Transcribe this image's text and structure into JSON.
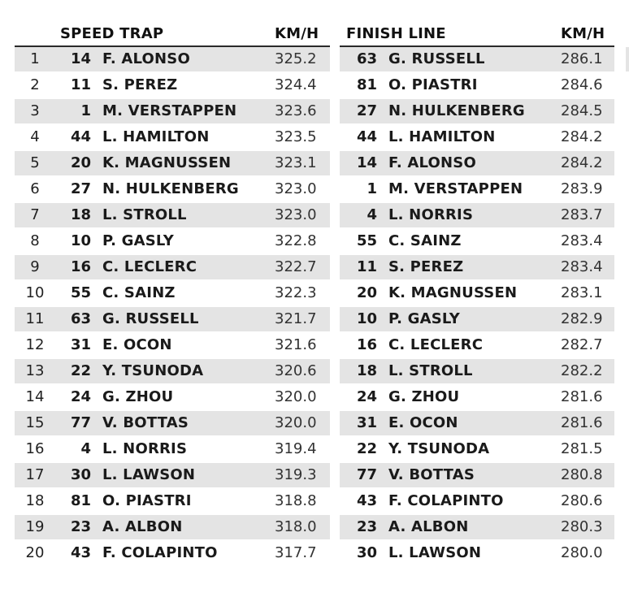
{
  "speed_trap": {
    "header": "SPEED TRAP",
    "unit": "KM/H",
    "rows": [
      {
        "pos": "1",
        "num": "14",
        "name": "F. ALONSO",
        "speed": "325.2"
      },
      {
        "pos": "2",
        "num": "11",
        "name": "S. PEREZ",
        "speed": "324.4"
      },
      {
        "pos": "3",
        "num": "1",
        "name": "M. VERSTAPPEN",
        "speed": "323.6"
      },
      {
        "pos": "4",
        "num": "44",
        "name": "L. HAMILTON",
        "speed": "323.5"
      },
      {
        "pos": "5",
        "num": "20",
        "name": "K. MAGNUSSEN",
        "speed": "323.1"
      },
      {
        "pos": "6",
        "num": "27",
        "name": "N. HULKENBERG",
        "speed": "323.0"
      },
      {
        "pos": "7",
        "num": "18",
        "name": "L. STROLL",
        "speed": "323.0"
      },
      {
        "pos": "8",
        "num": "10",
        "name": "P. GASLY",
        "speed": "322.8"
      },
      {
        "pos": "9",
        "num": "16",
        "name": "C. LECLERC",
        "speed": "322.7"
      },
      {
        "pos": "10",
        "num": "55",
        "name": "C. SAINZ",
        "speed": "322.3"
      },
      {
        "pos": "11",
        "num": "63",
        "name": "G. RUSSELL",
        "speed": "321.7"
      },
      {
        "pos": "12",
        "num": "31",
        "name": "E. OCON",
        "speed": "321.6"
      },
      {
        "pos": "13",
        "num": "22",
        "name": "Y. TSUNODA",
        "speed": "320.6"
      },
      {
        "pos": "14",
        "num": "24",
        "name": "G. ZHOU",
        "speed": "320.0"
      },
      {
        "pos": "15",
        "num": "77",
        "name": "V. BOTTAS",
        "speed": "320.0"
      },
      {
        "pos": "16",
        "num": "4",
        "name": "L. NORRIS",
        "speed": "319.4"
      },
      {
        "pos": "17",
        "num": "30",
        "name": "L. LAWSON",
        "speed": "319.3"
      },
      {
        "pos": "18",
        "num": "81",
        "name": "O. PIASTRI",
        "speed": "318.8"
      },
      {
        "pos": "19",
        "num": "23",
        "name": "A. ALBON",
        "speed": "318.0"
      },
      {
        "pos": "20",
        "num": "43",
        "name": "F. COLAPINTO",
        "speed": "317.7"
      }
    ]
  },
  "finish_line": {
    "header": "FINISH LINE",
    "unit": "KM/H",
    "rows": [
      {
        "num": "63",
        "name": "G. RUSSELL",
        "speed": "286.1"
      },
      {
        "num": "81",
        "name": "O. PIASTRI",
        "speed": "284.6"
      },
      {
        "num": "27",
        "name": "N. HULKENBERG",
        "speed": "284.5"
      },
      {
        "num": "44",
        "name": "L. HAMILTON",
        "speed": "284.2"
      },
      {
        "num": "14",
        "name": "F. ALONSO",
        "speed": "284.2"
      },
      {
        "num": "1",
        "name": "M. VERSTAPPEN",
        "speed": "283.9"
      },
      {
        "num": "4",
        "name": "L. NORRIS",
        "speed": "283.7"
      },
      {
        "num": "55",
        "name": "C. SAINZ",
        "speed": "283.4"
      },
      {
        "num": "11",
        "name": "S. PEREZ",
        "speed": "283.4"
      },
      {
        "num": "20",
        "name": "K. MAGNUSSEN",
        "speed": "283.1"
      },
      {
        "num": "10",
        "name": "P. GASLY",
        "speed": "282.9"
      },
      {
        "num": "16",
        "name": "C. LECLERC",
        "speed": "282.7"
      },
      {
        "num": "18",
        "name": "L. STROLL",
        "speed": "282.2"
      },
      {
        "num": "24",
        "name": "G. ZHOU",
        "speed": "281.6"
      },
      {
        "num": "31",
        "name": "E. OCON",
        "speed": "281.6"
      },
      {
        "num": "22",
        "name": "Y. TSUNODA",
        "speed": "281.5"
      },
      {
        "num": "77",
        "name": "V. BOTTAS",
        "speed": "280.8"
      },
      {
        "num": "43",
        "name": "F. COLAPINTO",
        "speed": "280.6"
      },
      {
        "num": "23",
        "name": "A. ALBON",
        "speed": "280.3"
      },
      {
        "num": "30",
        "name": "L. LAWSON",
        "speed": "280.0"
      }
    ]
  },
  "colors": {
    "row_shade": "#e4e4e4",
    "rule": "#2a2a2a",
    "text": "#1a1a1a"
  }
}
